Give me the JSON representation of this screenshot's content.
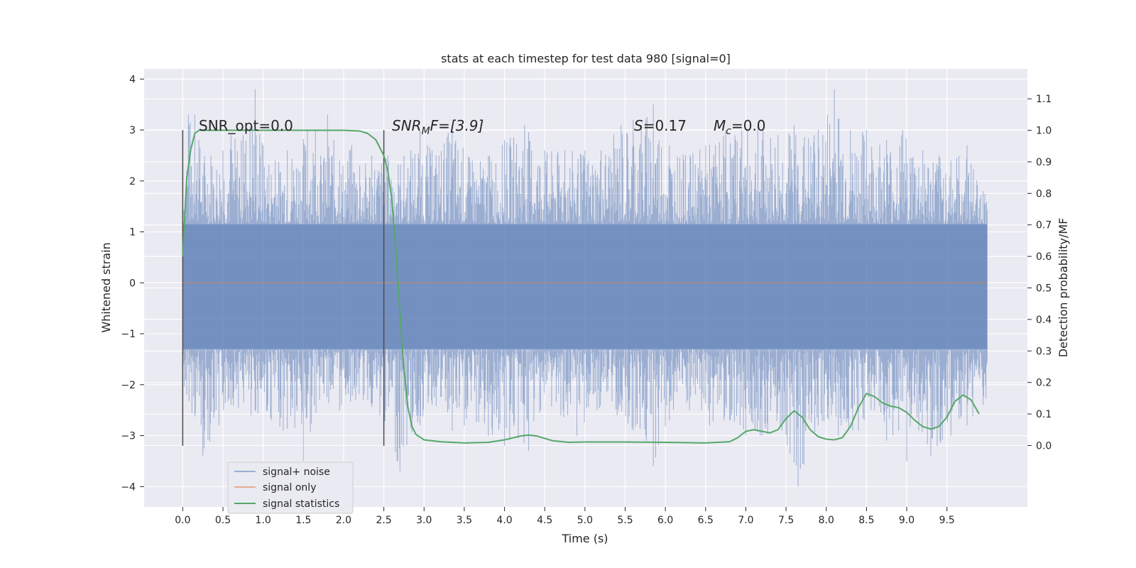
{
  "chart_data": {
    "type": "line",
    "title": "stats at each timestep for test data 980 [signal=0]",
    "xlabel": "Time (s)",
    "ylabel": "Whitened strain",
    "y2label": "Detection probability/MF",
    "xlim": [
      -0.48,
      10.5
    ],
    "ylim": [
      -4.4,
      4.2
    ],
    "y2lim": [
      -0.195,
      1.195
    ],
    "xticks": [
      0.0,
      0.5,
      1.0,
      1.5,
      2.0,
      2.5,
      3.0,
      3.5,
      4.0,
      4.5,
      5.0,
      5.5,
      6.0,
      6.5,
      7.0,
      7.5,
      8.0,
      8.5,
      9.0,
      9.5
    ],
    "xtick_labels": [
      "0.0",
      "0.5",
      "1.0",
      "1.5",
      "2.0",
      "2.5",
      "3.0",
      "3.5",
      "4.0",
      "4.5",
      "5.0",
      "5.5",
      "6.0",
      "6.5",
      "7.0",
      "7.5",
      "8.0",
      "8.5",
      "9.0",
      "9.5"
    ],
    "yticks": [
      4,
      3,
      2,
      1,
      0,
      -1,
      -2,
      -3,
      -4
    ],
    "ytick_labels": [
      "4",
      "3",
      "2",
      "1",
      "0",
      "−1",
      "−2",
      "−3",
      "−4"
    ],
    "y2ticks": [
      1.1,
      1.0,
      0.9,
      0.8,
      0.7,
      0.6,
      0.5,
      0.4,
      0.3,
      0.2,
      0.1,
      0.0
    ],
    "y2tick_labels": [
      "1.1",
      "1.0",
      "0.9",
      "0.8",
      "0.7",
      "0.6",
      "0.5",
      "0.4",
      "0.3",
      "0.2",
      "0.1",
      "0.0"
    ],
    "grid": true,
    "legend_position": "lower-left",
    "annotations": {
      "snr_opt": "SNR_opt=0.0",
      "snr_mf_base": "SNR",
      "snr_mf_sub": "M",
      "snr_mf_rest": "F=[3.9]",
      "s_var": "S",
      "s_val": "=0.17",
      "mc_var": "M",
      "mc_sub": "c",
      "mc_val": "=0.0"
    },
    "marker_lines_x": [
      0.0,
      2.5
    ],
    "marker_lines_y": [
      -3.2,
      3.0
    ],
    "noise_band": {
      "x_start": 0.0,
      "x_end": 10.0,
      "band_low": -1.3,
      "band_high": 1.15,
      "peaks": [
        [
          0.05,
          2.2
        ],
        [
          0.07,
          3.3
        ],
        [
          0.15,
          3.3
        ],
        [
          0.2,
          2.8
        ],
        [
          0.35,
          2.5
        ],
        [
          0.5,
          2.6
        ],
        [
          0.6,
          2.9
        ],
        [
          0.75,
          2.9
        ],
        [
          0.9,
          3.8
        ],
        [
          1.0,
          2.7
        ],
        [
          1.15,
          2.4
        ],
        [
          1.3,
          2.6
        ],
        [
          1.55,
          3.0
        ],
        [
          1.65,
          3.0
        ],
        [
          1.75,
          2.4
        ],
        [
          1.8,
          3.3
        ],
        [
          1.95,
          2.4
        ],
        [
          2.1,
          2.7
        ],
        [
          2.2,
          2.3
        ],
        [
          2.35,
          2.5
        ],
        [
          2.55,
          2.5
        ],
        [
          2.75,
          2.5
        ],
        [
          2.95,
          3.0
        ],
        [
          3.1,
          2.6
        ],
        [
          3.35,
          3.1
        ],
        [
          3.6,
          2.4
        ],
        [
          3.8,
          2.5
        ],
        [
          4.0,
          2.8
        ],
        [
          4.25,
          3.1
        ],
        [
          4.5,
          2.6
        ],
        [
          4.75,
          2.6
        ],
        [
          5.0,
          2.6
        ],
        [
          5.2,
          2.6
        ],
        [
          5.45,
          3.1
        ],
        [
          5.6,
          3.2
        ],
        [
          5.85,
          3.5
        ],
        [
          6.05,
          2.7
        ],
        [
          6.25,
          2.5
        ],
        [
          6.5,
          2.7
        ],
        [
          6.75,
          3.0
        ],
        [
          6.95,
          3.0
        ],
        [
          7.15,
          3.1
        ],
        [
          7.4,
          2.9
        ],
        [
          7.6,
          3.1
        ],
        [
          7.85,
          2.9
        ],
        [
          8.1,
          3.8
        ],
        [
          8.3,
          3.0
        ],
        [
          8.5,
          3.0
        ],
        [
          8.75,
          2.8
        ],
        [
          8.95,
          3.0
        ],
        [
          9.2,
          2.6
        ],
        [
          9.4,
          2.5
        ],
        [
          9.55,
          2.4
        ],
        [
          9.75,
          2.7
        ],
        [
          9.95,
          1.8
        ]
      ],
      "troughs": [
        [
          0.05,
          -2.2
        ],
        [
          0.25,
          -3.4
        ],
        [
          0.45,
          -2.8
        ],
        [
          0.6,
          -2.4
        ],
        [
          0.85,
          -2.6
        ],
        [
          1.1,
          -2.7
        ],
        [
          1.25,
          -2.9
        ],
        [
          1.5,
          -3.5
        ],
        [
          1.7,
          -2.3
        ],
        [
          1.95,
          -2.5
        ],
        [
          2.15,
          -2.3
        ],
        [
          2.45,
          -2.6
        ],
        [
          2.7,
          -3.7
        ],
        [
          2.95,
          -2.8
        ],
        [
          3.1,
          -2.4
        ],
        [
          3.35,
          -2.9
        ],
        [
          3.5,
          -2.8
        ],
        [
          3.8,
          -3.0
        ],
        [
          4.0,
          -3.2
        ],
        [
          4.3,
          -3.3
        ],
        [
          4.45,
          -2.5
        ],
        [
          4.7,
          -2.6
        ],
        [
          4.9,
          -3.0
        ],
        [
          5.15,
          -2.5
        ],
        [
          5.4,
          -2.6
        ],
        [
          5.6,
          -2.9
        ],
        [
          5.85,
          -3.6
        ],
        [
          6.05,
          -2.7
        ],
        [
          6.3,
          -2.5
        ],
        [
          6.55,
          -2.8
        ],
        [
          6.8,
          -2.7
        ],
        [
          7.0,
          -3.0
        ],
        [
          7.2,
          -3.0
        ],
        [
          7.45,
          -2.9
        ],
        [
          7.65,
          -4.0
        ],
        [
          7.9,
          -2.8
        ],
        [
          8.15,
          -3.0
        ],
        [
          8.4,
          -2.9
        ],
        [
          8.6,
          -2.5
        ],
        [
          8.75,
          -3.1
        ],
        [
          8.9,
          -2.9
        ],
        [
          9.0,
          -3.5
        ],
        [
          9.15,
          -2.9
        ],
        [
          9.3,
          -3.4
        ],
        [
          9.55,
          -3.0
        ],
        [
          9.75,
          -2.8
        ],
        [
          9.95,
          -2.4
        ]
      ]
    },
    "series": [
      {
        "name": "signal+ noise",
        "color": "#4c72b0",
        "axis": "left",
        "role": "noise"
      },
      {
        "name": "signal only",
        "color": "#dd8452",
        "axis": "left",
        "x": [
          0.0,
          10.0
        ],
        "y": [
          0.0,
          0.0
        ]
      },
      {
        "name": "signal statistics",
        "color": "#55a868",
        "axis": "right",
        "x": [
          0.0,
          0.05,
          0.1,
          0.15,
          0.2,
          0.3,
          0.5,
          1.0,
          1.5,
          2.0,
          2.2,
          2.3,
          2.4,
          2.5,
          2.55,
          2.6,
          2.65,
          2.7,
          2.75,
          2.8,
          2.85,
          2.9,
          3.0,
          3.2,
          3.5,
          3.8,
          4.0,
          4.2,
          4.3,
          4.4,
          4.6,
          4.8,
          5.0,
          5.5,
          6.0,
          6.5,
          6.8,
          6.9,
          7.0,
          7.1,
          7.2,
          7.3,
          7.4,
          7.5,
          7.6,
          7.7,
          7.8,
          7.9,
          8.0,
          8.1,
          8.2,
          8.3,
          8.4,
          8.5,
          8.6,
          8.7,
          8.8,
          8.9,
          9.0,
          9.1,
          9.2,
          9.3,
          9.4,
          9.5,
          9.6,
          9.7,
          9.8,
          9.9
        ],
        "y": [
          0.6,
          0.85,
          0.94,
          0.99,
          1.0,
          1.0,
          1.0,
          1.0,
          1.0,
          1.0,
          0.998,
          0.99,
          0.97,
          0.92,
          0.87,
          0.78,
          0.62,
          0.42,
          0.24,
          0.12,
          0.06,
          0.035,
          0.018,
          0.012,
          0.008,
          0.01,
          0.018,
          0.03,
          0.033,
          0.03,
          0.015,
          0.01,
          0.011,
          0.011,
          0.01,
          0.008,
          0.012,
          0.025,
          0.045,
          0.05,
          0.045,
          0.04,
          0.05,
          0.085,
          0.11,
          0.09,
          0.05,
          0.028,
          0.02,
          0.018,
          0.025,
          0.06,
          0.12,
          0.165,
          0.155,
          0.135,
          0.125,
          0.12,
          0.105,
          0.08,
          0.06,
          0.052,
          0.06,
          0.09,
          0.14,
          0.16,
          0.145,
          0.1
        ]
      }
    ]
  }
}
